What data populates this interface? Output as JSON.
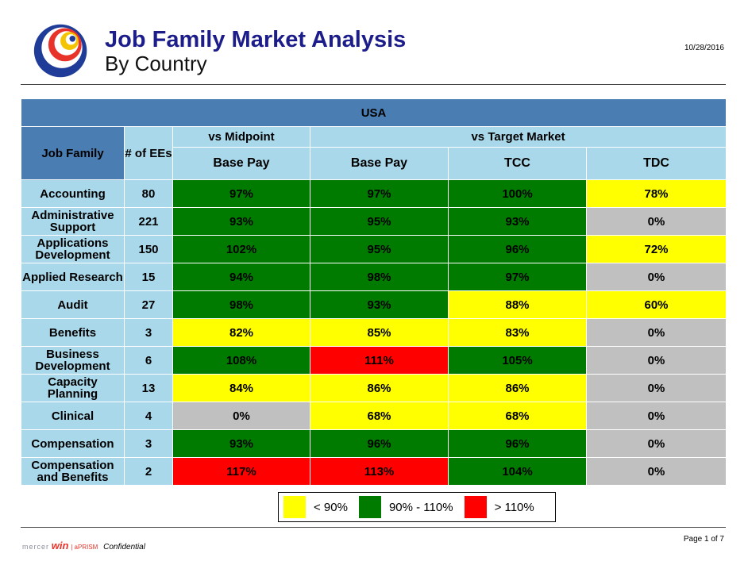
{
  "header": {
    "title": "Job Family Market Analysis",
    "subtitle": "By Country",
    "date": "10/28/2016"
  },
  "table": {
    "country": "USA",
    "col_job_family": "Job Family",
    "col_ees": "# of EEs",
    "group_midpoint": "vs Midpoint",
    "group_target": "vs Target Market",
    "sub_base_pay_mid": "Base Pay",
    "sub_base_pay_target": "Base Pay",
    "sub_tcc": "TCC",
    "sub_tdc": "TDC",
    "rows": [
      {
        "name": "Accounting",
        "ees": "80",
        "mid_base": "97%",
        "mid_base_color": "green",
        "tgt_base": "97%",
        "tgt_base_color": "green",
        "tcc": "100%",
        "tcc_color": "green",
        "tdc": "78%",
        "tdc_color": "yellow"
      },
      {
        "name": "Administrative Support",
        "ees": "221",
        "mid_base": "93%",
        "mid_base_color": "green",
        "tgt_base": "95%",
        "tgt_base_color": "green",
        "tcc": "93%",
        "tcc_color": "green",
        "tdc": "0%",
        "tdc_color": "grey"
      },
      {
        "name": "Applications Development",
        "ees": "150",
        "mid_base": "102%",
        "mid_base_color": "green",
        "tgt_base": "95%",
        "tgt_base_color": "green",
        "tcc": "96%",
        "tcc_color": "green",
        "tdc": "72%",
        "tdc_color": "yellow"
      },
      {
        "name": "Applied Research",
        "ees": "15",
        "mid_base": "94%",
        "mid_base_color": "green",
        "tgt_base": "98%",
        "tgt_base_color": "green",
        "tcc": "97%",
        "tcc_color": "green",
        "tdc": "0%",
        "tdc_color": "grey"
      },
      {
        "name": "Audit",
        "ees": "27",
        "mid_base": "98%",
        "mid_base_color": "green",
        "tgt_base": "93%",
        "tgt_base_color": "green",
        "tcc": "88%",
        "tcc_color": "yellow",
        "tdc": "60%",
        "tdc_color": "yellow"
      },
      {
        "name": "Benefits",
        "ees": "3",
        "mid_base": "82%",
        "mid_base_color": "yellow",
        "tgt_base": "85%",
        "tgt_base_color": "yellow",
        "tcc": "83%",
        "tcc_color": "yellow",
        "tdc": "0%",
        "tdc_color": "grey"
      },
      {
        "name": "Business Development",
        "ees": "6",
        "mid_base": "108%",
        "mid_base_color": "green",
        "tgt_base": "111%",
        "tgt_base_color": "red",
        "tcc": "105%",
        "tcc_color": "green",
        "tdc": "0%",
        "tdc_color": "grey"
      },
      {
        "name": "Capacity Planning",
        "ees": "13",
        "mid_base": "84%",
        "mid_base_color": "yellow",
        "tgt_base": "86%",
        "tgt_base_color": "yellow",
        "tcc": "86%",
        "tcc_color": "yellow",
        "tdc": "0%",
        "tdc_color": "grey"
      },
      {
        "name": "Clinical",
        "ees": "4",
        "mid_base": "0%",
        "mid_base_color": "grey",
        "tgt_base": "68%",
        "tgt_base_color": "yellow",
        "tcc": "68%",
        "tcc_color": "yellow",
        "tdc": "0%",
        "tdc_color": "grey"
      },
      {
        "name": "Compensation",
        "ees": "3",
        "mid_base": "93%",
        "mid_base_color": "green",
        "tgt_base": "96%",
        "tgt_base_color": "green",
        "tcc": "96%",
        "tcc_color": "green",
        "tdc": "0%",
        "tdc_color": "grey"
      },
      {
        "name": "Compensation and Benefits",
        "ees": "2",
        "mid_base": "117%",
        "mid_base_color": "red",
        "tgt_base": "113%",
        "tgt_base_color": "red",
        "tcc": "104%",
        "tcc_color": "green",
        "tdc": "0%",
        "tdc_color": "grey"
      }
    ]
  },
  "legend": {
    "items": [
      {
        "label": "< 90%",
        "color": "#ffff00"
      },
      {
        "label": "90% - 110%",
        "color": "#007b00"
      },
      {
        "label": "> 110%",
        "color": "#ff0000"
      }
    ]
  },
  "footer": {
    "brand_mercer": "mercer",
    "brand_win": "win",
    "brand_aprism": "| aPRISM",
    "confidential": "Confidential",
    "page": "Page 1 of 7"
  },
  "colors": {
    "green": "#007b00",
    "yellow": "#ffff00",
    "red": "#ff0000",
    "grey": "#c0c0c0",
    "header_dark": "#4a7eb3",
    "header_light": "#a9d8ea",
    "title": "#1c1d8a"
  }
}
